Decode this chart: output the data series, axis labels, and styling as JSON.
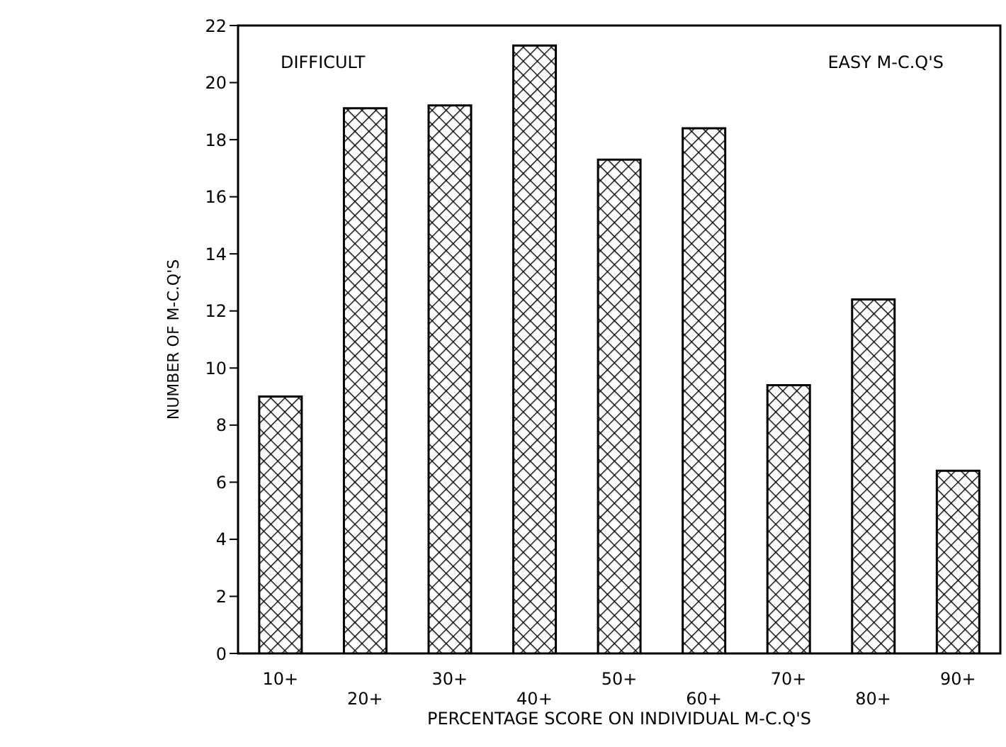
{
  "chart_data": {
    "type": "bar",
    "xlabel": "PERCENTAGE SCORE ON INDIVIDUAL M-C.Q'S",
    "ylabel": "NUMBER OF M-C.Q'S",
    "categories": [
      "10+",
      "20+",
      "30+",
      "40+",
      "50+",
      "60+",
      "70+",
      "80+",
      "90+"
    ],
    "values": [
      9.0,
      19.1,
      19.2,
      21.3,
      17.3,
      18.4,
      9.4,
      12.4,
      6.4
    ],
    "color": "#000000",
    "ylim": [
      0,
      22
    ],
    "yticks": [
      0,
      2,
      4,
      6,
      8,
      10,
      12,
      14,
      16,
      18,
      20,
      22
    ],
    "annotations": [
      "DIFFICULT",
      "EASY M-C.Q'S"
    ]
  }
}
